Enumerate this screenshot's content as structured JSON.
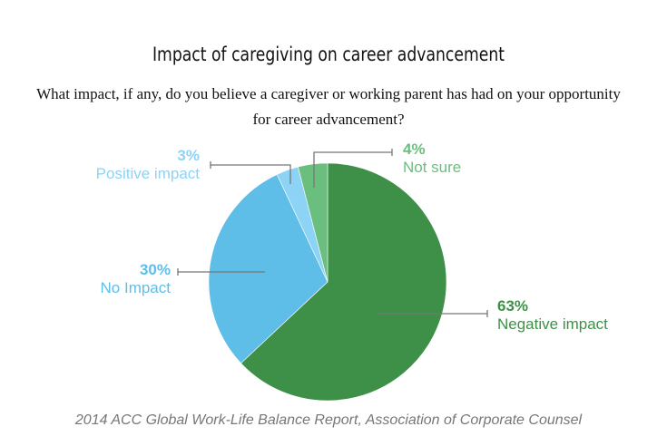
{
  "chart_data": {
    "type": "pie",
    "title": "Impact of caregiving on career advancement",
    "subtitle": "What impact, if any, do you believe a caregiver or working parent has had on your opportunity for career advancement?",
    "source": "2014 ACC Global Work-Life Balance Report, Association of Corporate Counsel",
    "slices": [
      {
        "label": "Negative impact",
        "value": 63,
        "pct_label": "63%",
        "color": "#3e9049"
      },
      {
        "label": "No Impact",
        "value": 30,
        "pct_label": "30%",
        "color": "#5fbee8"
      },
      {
        "label": "Positive impact",
        "value": 3,
        "pct_label": "3%",
        "color": "#8dd3f5"
      },
      {
        "label": "Not sure",
        "value": 4,
        "pct_label": "4%",
        "color": "#6abf7e"
      }
    ]
  }
}
